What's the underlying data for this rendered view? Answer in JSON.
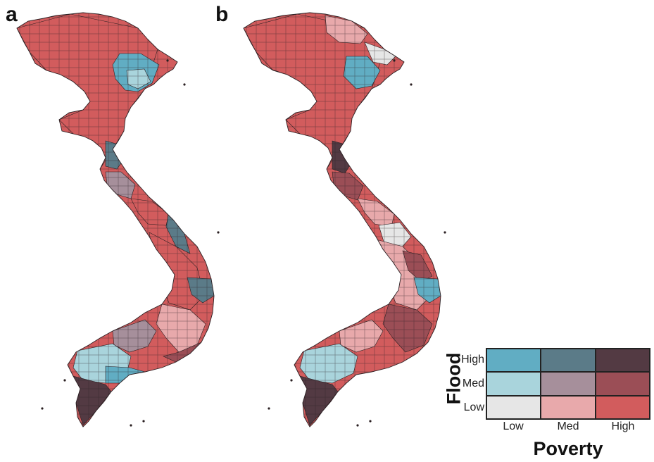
{
  "panels": [
    {
      "label": "a"
    },
    {
      "label": "b"
    }
  ],
  "legend": {
    "y_title": "Flood",
    "x_title": "Poverty",
    "flood_levels": [
      "High",
      "Med",
      "Low"
    ],
    "poverty_levels": [
      "Low",
      "Med",
      "High"
    ],
    "colors": [
      [
        "#61adc3",
        "#5b7b88",
        "#533a43"
      ],
      [
        "#a9d4dc",
        "#a68f9b",
        "#9b4e56"
      ],
      [
        "#e6e6e6",
        "#e8a9ab",
        "#d25c5d"
      ]
    ]
  },
  "palette": {
    "high_high": "#533a43",
    "high_med": "#5b7b88",
    "high_low": "#61adc3",
    "med_high": "#9b4e56",
    "med_med": "#a68f9b",
    "med_low": "#a9d4dc",
    "low_high": "#d25c5d",
    "low_med": "#e8a9ab",
    "low_low": "#e6e6e6",
    "border": "#2a1f22"
  }
}
